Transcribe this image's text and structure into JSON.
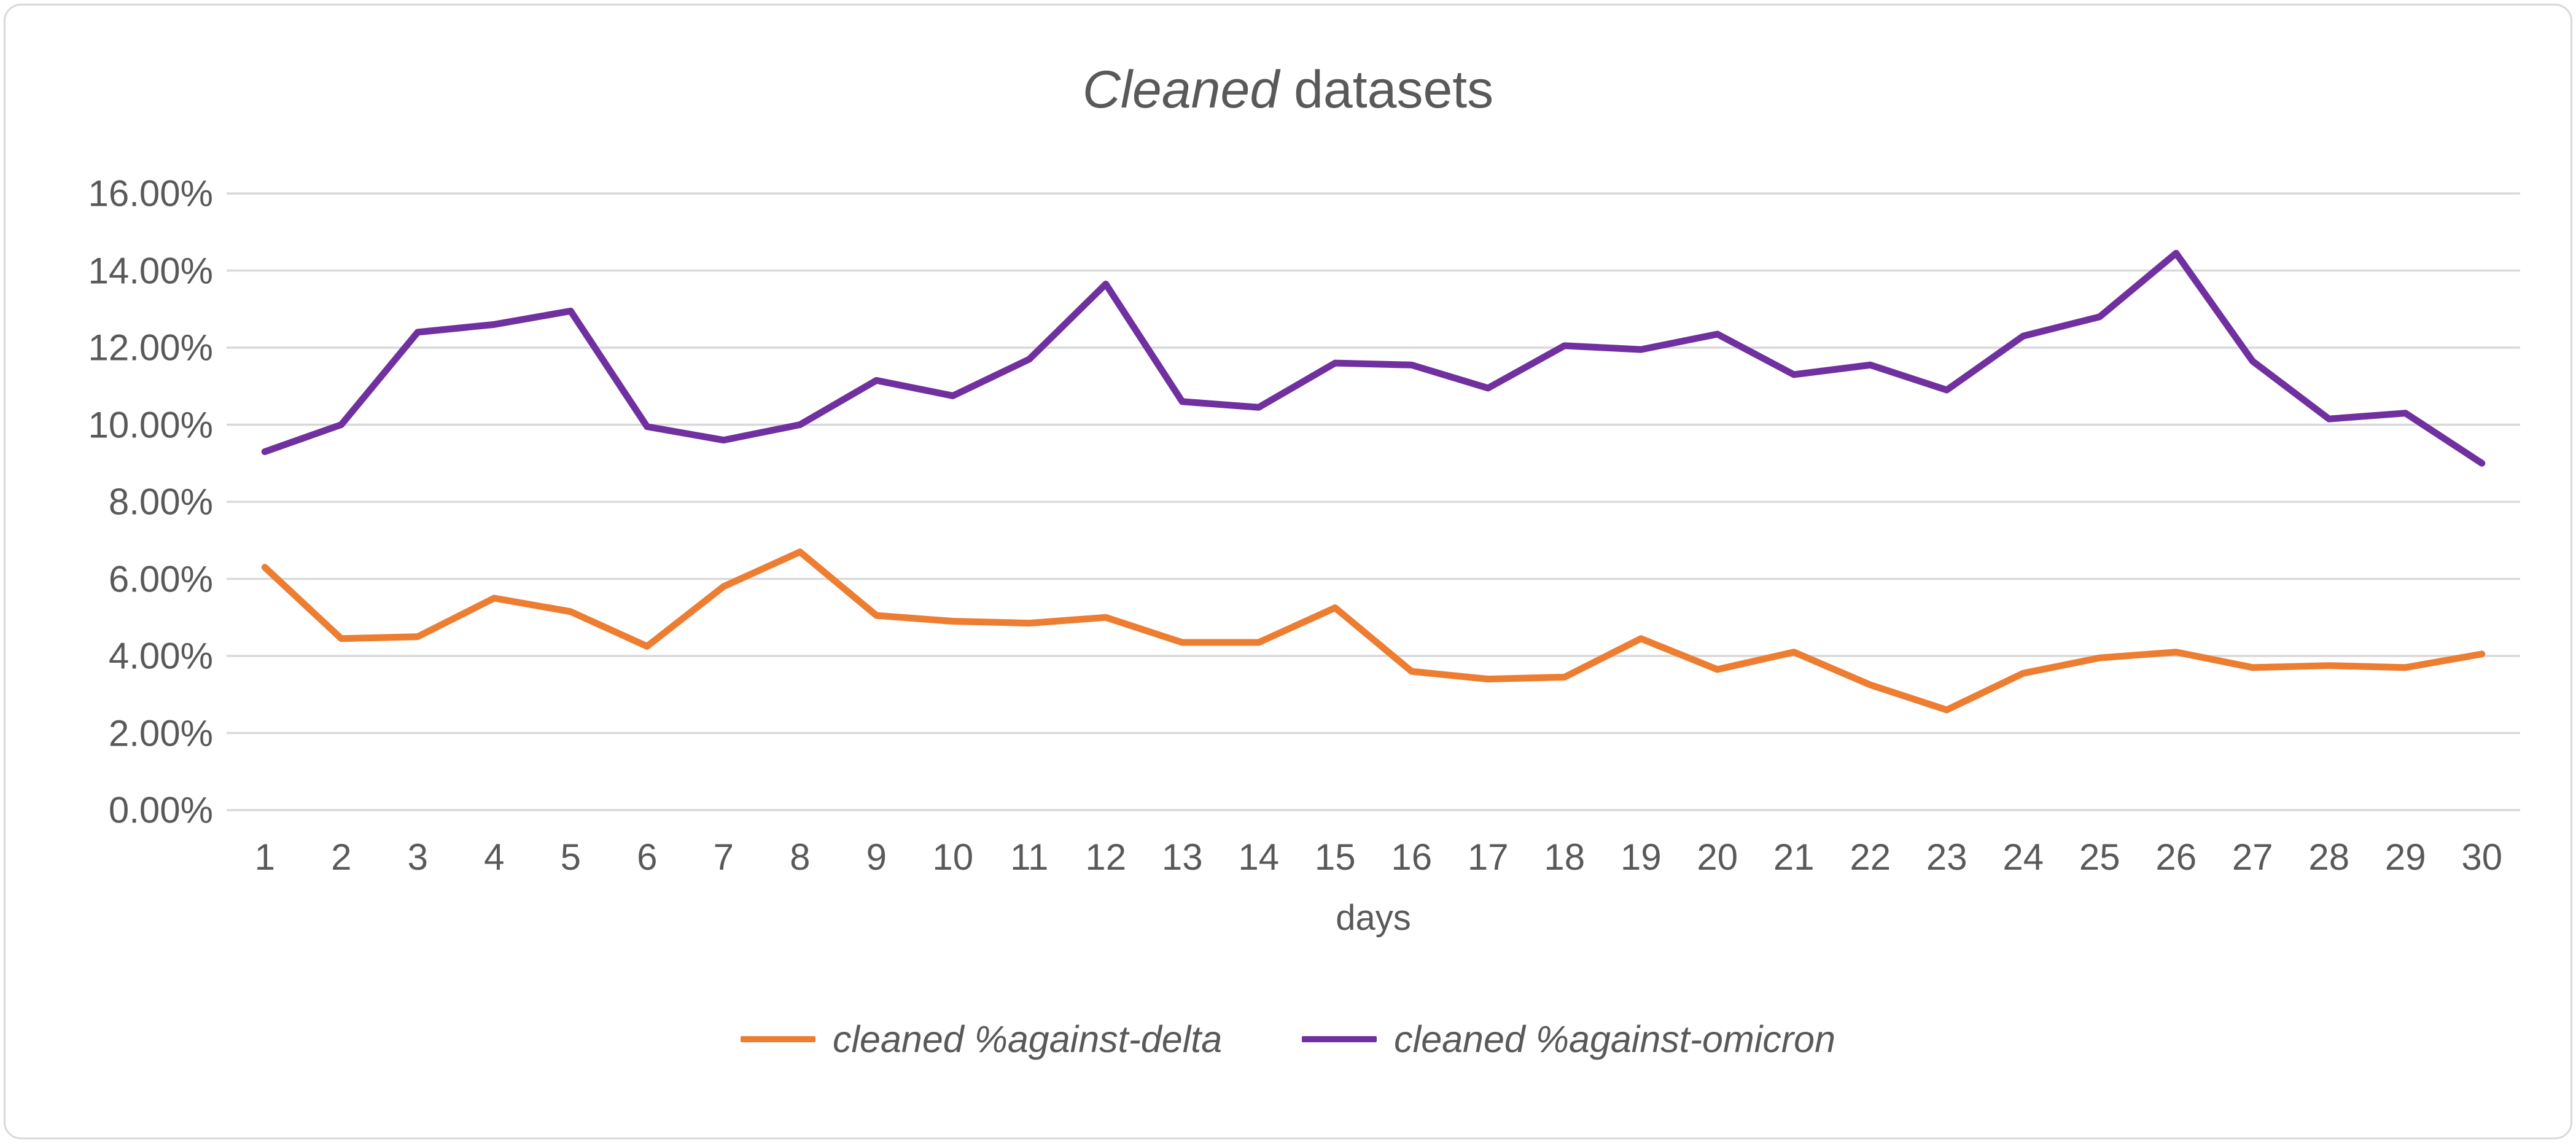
{
  "title": {
    "italic_part": "Cleaned",
    "normal_part": " datasets",
    "full": "Cleaned datasets"
  },
  "colors": {
    "background": "#FFFFFF",
    "border": "#D9D9D9",
    "gridline": "#D9D9D9",
    "text": "#595959",
    "delta_series": "#ED7D31",
    "omicron_series": "#7030A0"
  },
  "chart_data": {
    "type": "line",
    "title": "Cleaned datasets",
    "xlabel": "days",
    "ylabel": "",
    "unit": "%",
    "grid": "horizontal",
    "legend_position": "bottom",
    "ylim": [
      0,
      16
    ],
    "yticks": [
      0,
      2,
      4,
      6,
      8,
      10,
      12,
      14,
      16
    ],
    "y_tick_labels": [
      "0.00%",
      "2.00%",
      "4.00%",
      "6.00%",
      "8.00%",
      "10.00%",
      "12.00%",
      "14.00%",
      "16.00%"
    ],
    "x_ticks": [
      "1",
      "2",
      "3",
      "4",
      "5",
      "6",
      "7",
      "8",
      "9",
      "10",
      "11",
      "12",
      "13",
      "14",
      "15",
      "16",
      "17",
      "18",
      "19",
      "20",
      "21",
      "22",
      "23",
      "24",
      "25",
      "26",
      "27",
      "28",
      "29",
      "30"
    ],
    "x": [
      1,
      2,
      3,
      4,
      5,
      6,
      7,
      8,
      9,
      10,
      11,
      12,
      13,
      14,
      15,
      16,
      17,
      18,
      19,
      20,
      21,
      22,
      23,
      24,
      25,
      26,
      27,
      28,
      29,
      30
    ],
    "series": [
      {
        "name": "cleaned %against-delta",
        "color": "#ED7D31",
        "values": [
          6.3,
          4.45,
          4.5,
          5.5,
          5.15,
          4.25,
          5.8,
          6.7,
          5.05,
          4.9,
          4.85,
          5.0,
          4.35,
          4.35,
          5.25,
          3.6,
          3.4,
          3.45,
          4.45,
          3.65,
          4.1,
          3.25,
          2.6,
          3.55,
          3.95,
          4.1,
          3.7,
          3.75,
          3.7,
          4.05
        ]
      },
      {
        "name": "cleaned %against-omicron",
        "color": "#7030A0",
        "values": [
          9.3,
          10.0,
          12.4,
          12.6,
          12.95,
          9.95,
          9.6,
          10.0,
          11.15,
          10.75,
          11.7,
          13.65,
          10.6,
          10.45,
          11.6,
          11.55,
          10.95,
          12.05,
          11.95,
          12.35,
          11.3,
          11.55,
          10.9,
          12.3,
          12.8,
          14.45,
          11.65,
          10.15,
          10.3,
          9.0
        ]
      }
    ]
  },
  "legend": {
    "items": [
      {
        "label": "cleaned %against-delta",
        "swatch": "orange-line-swatch"
      },
      {
        "label": "cleaned %against-omicron",
        "swatch": "purple-line-swatch"
      }
    ]
  }
}
